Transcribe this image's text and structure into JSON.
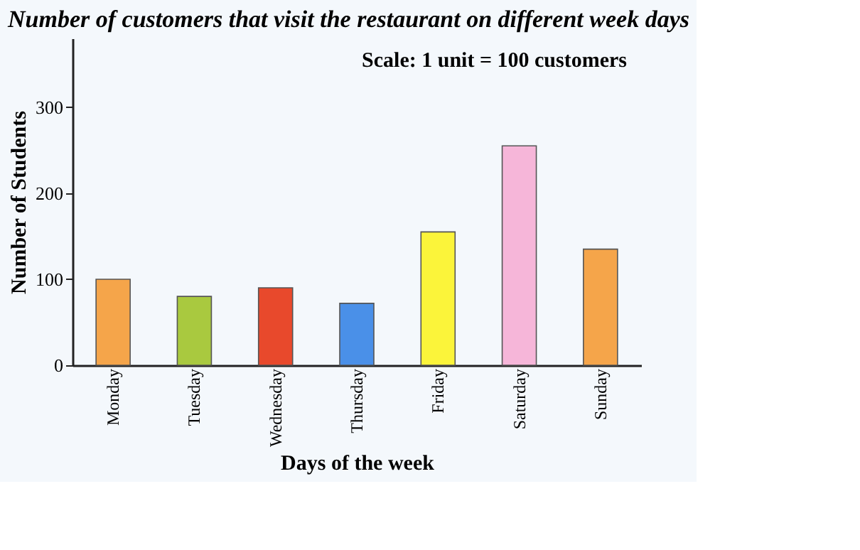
{
  "chart_data": {
    "type": "bar",
    "title": "Number of customers that visit the restaurant on different week days",
    "xlabel": "Days of the week",
    "ylabel": "Number of Students",
    "categories": [
      "Monday",
      "Tuesday",
      "Wednesday",
      "Thursday",
      "Friday",
      "Saturday",
      "Sunday"
    ],
    "values": [
      100,
      80,
      90,
      72,
      155,
      255,
      135
    ],
    "colors": [
      "#f5a54a",
      "#a9c93f",
      "#e8492c",
      "#4a90e8",
      "#fbf43a",
      "#f6b6d9",
      "#f5a54a"
    ],
    "ylim": [
      0,
      380
    ],
    "yticks": [
      0,
      100,
      200,
      300
    ],
    "annotations": [
      "Scale: 1 unit = 100 customers"
    ]
  }
}
